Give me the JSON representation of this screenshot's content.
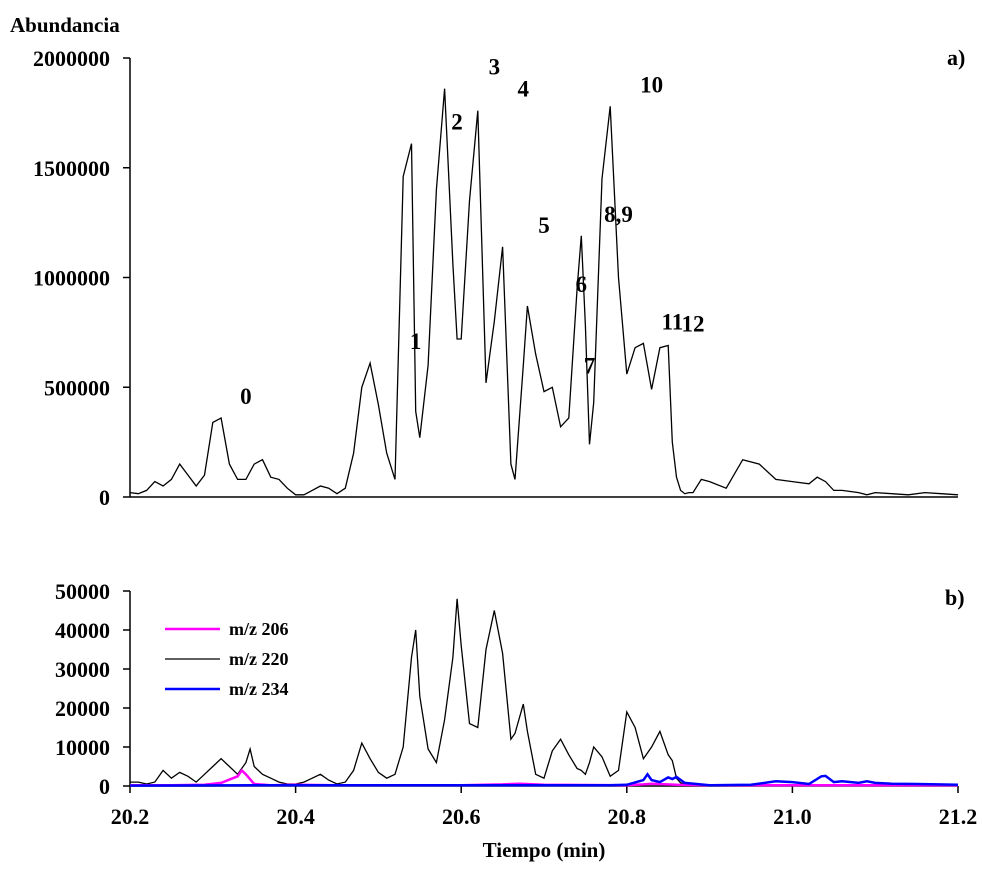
{
  "chart_data": [
    {
      "panel": "a)",
      "type": "line",
      "ylabel": "Abundancia",
      "ylim": [
        0,
        2000000
      ],
      "xlim": [
        20.2,
        21.2
      ],
      "yticks": [
        "0",
        "500000",
        "1000000",
        "1500000",
        "2000000"
      ],
      "x": [
        20.2,
        20.21,
        20.22,
        20.23,
        20.24,
        20.25,
        20.26,
        20.27,
        20.28,
        20.29,
        20.3,
        20.31,
        20.32,
        20.33,
        20.335,
        20.34,
        20.35,
        20.36,
        20.37,
        20.38,
        20.39,
        20.4,
        20.41,
        20.42,
        20.43,
        20.44,
        20.45,
        20.46,
        20.47,
        20.48,
        20.49,
        20.5,
        20.51,
        20.52,
        20.53,
        20.54,
        20.545,
        20.55,
        20.56,
        20.57,
        20.58,
        20.59,
        20.595,
        20.6,
        20.61,
        20.62,
        20.63,
        20.64,
        20.65,
        20.66,
        20.665,
        20.675,
        20.68,
        20.69,
        20.7,
        20.71,
        20.72,
        20.73,
        20.74,
        20.745,
        20.75,
        20.755,
        20.76,
        20.77,
        20.78,
        20.79,
        20.8,
        20.81,
        20.82,
        20.83,
        20.84,
        20.85,
        20.855,
        20.86,
        20.865,
        20.87,
        20.875,
        20.88,
        20.89,
        20.9,
        20.92,
        20.94,
        20.96,
        20.98,
        21.0,
        21.02,
        21.03,
        21.04,
        21.05,
        21.06,
        21.07,
        21.08,
        21.09,
        21.1,
        21.12,
        21.14,
        21.16,
        21.18,
        21.2
      ],
      "values": [
        20000,
        15000,
        30000,
        70000,
        50000,
        80000,
        150000,
        100000,
        50000,
        100000,
        340000,
        360000,
        150000,
        80000,
        80000,
        80000,
        150000,
        170000,
        90000,
        80000,
        40000,
        10000,
        10000,
        30000,
        50000,
        40000,
        15000,
        40000,
        200000,
        500000,
        610000,
        420000,
        200000,
        80000,
        1460000,
        1610000,
        390000,
        270000,
        600000,
        1400000,
        1860000,
        1060000,
        720000,
        720000,
        1350000,
        1760000,
        520000,
        800000,
        1140000,
        150000,
        80000,
        600000,
        870000,
        650000,
        480000,
        500000,
        320000,
        360000,
        950000,
        1190000,
        780000,
        240000,
        430000,
        1450000,
        1780000,
        1000000,
        560000,
        680000,
        700000,
        490000,
        680000,
        690000,
        250000,
        90000,
        30000,
        15000,
        20000,
        20000,
        80000,
        70000,
        40000,
        170000,
        150000,
        80000,
        70000,
        60000,
        90000,
        70000,
        30000,
        30000,
        25000,
        20000,
        10000,
        20000,
        15000,
        10000,
        20000,
        15000,
        10000
      ],
      "peak_labels": [
        {
          "text": "0",
          "x": 20.34,
          "y": 360000
        },
        {
          "text": "1",
          "x": 20.545,
          "y": 610000
        },
        {
          "text": "2",
          "x": 20.595,
          "y": 1610000
        },
        {
          "text": "3",
          "x": 20.64,
          "y": 1860000
        },
        {
          "text": "4",
          "x": 20.675,
          "y": 1760000
        },
        {
          "text": "5",
          "x": 20.7,
          "y": 1140000
        },
        {
          "text": "6",
          "x": 20.745,
          "y": 870000
        },
        {
          "text": "7",
          "x": 20.755,
          "y": 500000
        },
        {
          "text": "8,9",
          "x": 20.79,
          "y": 1190000
        },
        {
          "text": "10",
          "x": 20.83,
          "y": 1780000
        },
        {
          "text": "11",
          "x": 20.855,
          "y": 700000
        },
        {
          "text": "12",
          "x": 20.88,
          "y": 690000
        }
      ]
    },
    {
      "panel": "b)",
      "type": "line",
      "ylim": [
        0,
        50000
      ],
      "xlim": [
        20.2,
        21.2
      ],
      "xlabel": "Tiempo (min)",
      "yticks": [
        "0",
        "10000",
        "20000",
        "30000",
        "40000",
        "50000"
      ],
      "xticks": [
        "20.2",
        "20.4",
        "20.6",
        "20.8",
        "21.0",
        "21.2"
      ],
      "series": [
        {
          "name": "m/z 206",
          "color": "#ff00ff",
          "x": [
            20.2,
            20.25,
            20.29,
            20.31,
            20.33,
            20.335,
            20.34,
            20.35,
            20.37,
            20.4,
            20.45,
            20.6,
            20.65,
            20.67,
            20.7,
            20.8,
            20.82,
            20.83,
            20.86,
            20.9,
            21.0,
            21.1,
            21.2
          ],
          "values": [
            200,
            200,
            300,
            800,
            2500,
            4000,
            3000,
            500,
            200,
            300,
            200,
            200,
            400,
            600,
            300,
            200,
            400,
            600,
            300,
            200,
            200,
            200,
            200
          ]
        },
        {
          "name": "m/z 220",
          "color": "#000000",
          "x": [
            20.2,
            20.21,
            20.22,
            20.23,
            20.24,
            20.25,
            20.26,
            20.27,
            20.28,
            20.29,
            20.3,
            20.31,
            20.32,
            20.33,
            20.34,
            20.345,
            20.35,
            20.36,
            20.37,
            20.38,
            20.39,
            20.4,
            20.41,
            20.42,
            20.43,
            20.44,
            20.45,
            20.46,
            20.47,
            20.48,
            20.49,
            20.5,
            20.51,
            20.52,
            20.53,
            20.54,
            20.545,
            20.55,
            20.56,
            20.57,
            20.58,
            20.59,
            20.595,
            20.6,
            20.61,
            20.62,
            20.63,
            20.64,
            20.65,
            20.66,
            20.665,
            20.675,
            20.68,
            20.69,
            20.7,
            20.71,
            20.72,
            20.73,
            20.74,
            20.745,
            20.75,
            20.755,
            20.76,
            20.77,
            20.78,
            20.79,
            20.8,
            20.81,
            20.82,
            20.83,
            20.84,
            20.85,
            20.855,
            20.86,
            20.865,
            20.87,
            20.875,
            20.88,
            20.89,
            20.9,
            20.92,
            20.94,
            20.96,
            20.98,
            21.0,
            21.02,
            21.04,
            21.06,
            21.08,
            21.1,
            21.12,
            21.14,
            21.16,
            21.18,
            21.2
          ],
          "values": [
            1000,
            1000,
            500,
            1000,
            4000,
            2000,
            3500,
            2500,
            1000,
            3000,
            5000,
            7000,
            5000,
            3000,
            6000,
            9500,
            5000,
            3000,
            2000,
            1000,
            500,
            500,
            1000,
            2000,
            3000,
            1500,
            500,
            1000,
            4000,
            11000,
            7000,
            3500,
            2000,
            3000,
            10000,
            33000,
            40000,
            23000,
            9500,
            6000,
            17000,
            33000,
            48000,
            36000,
            16000,
            15000,
            35000,
            45000,
            34000,
            12000,
            13500,
            21000,
            14000,
            3000,
            2000,
            9000,
            12000,
            8000,
            4500,
            4000,
            3000,
            6000,
            10000,
            7500,
            2500,
            4000,
            19000,
            15000,
            7000,
            10000,
            14000,
            8000,
            6500,
            2000,
            800,
            500,
            300,
            300,
            300,
            300,
            300,
            300,
            300,
            300,
            300,
            300,
            300,
            300,
            300,
            300,
            300,
            300,
            300,
            300,
            300
          ]
        },
        {
          "name": "m/z 234",
          "color": "#0000ff",
          "x": [
            20.2,
            20.4,
            20.6,
            20.78,
            20.8,
            20.82,
            20.825,
            20.83,
            20.84,
            20.85,
            20.855,
            20.86,
            20.87,
            20.9,
            20.95,
            20.98,
            21.0,
            21.02,
            21.035,
            21.04,
            21.05,
            21.06,
            21.08,
            21.09,
            21.1,
            21.12,
            21.15,
            21.2
          ],
          "values": [
            100,
            200,
            200,
            200,
            300,
            1500,
            3000,
            1500,
            1000,
            2200,
            1800,
            2300,
            800,
            200,
            300,
            1200,
            1000,
            500,
            2500,
            2600,
            1000,
            1200,
            800,
            1200,
            800,
            600,
            500,
            300
          ]
        }
      ]
    }
  ]
}
